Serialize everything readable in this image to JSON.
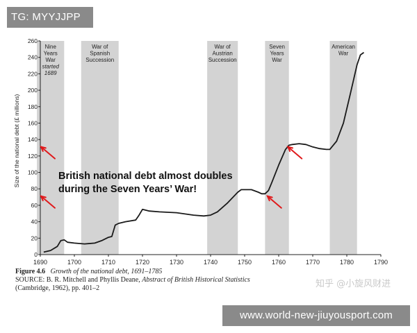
{
  "top_tag": "TG: MYYJJPP",
  "bottom_tag": "www.world-new-jiuyousport.com",
  "watermark": "知乎 @小旋风财进",
  "colors": {
    "tag_bg": "#8a8a8a",
    "war_band": "#d3d3d3",
    "line": "#1a1a1a",
    "arrow": "#e0191b"
  },
  "caption": {
    "figure_number": "Figure 4.6",
    "figure_title": "Growth of the national debt, 1691–1785",
    "source_label": "SOURCE:",
    "source_authors": "B. R. Mitchell and Phyllis Deane,",
    "source_title": "Abstract of British Historical Statistics",
    "source_details": "(Cambridge, 1962), pp. 401–2"
  },
  "chart_data": {
    "type": "line",
    "ylabel": "Size of the national debt (£ millions)",
    "xlabel": "",
    "xlim": [
      1690,
      1790
    ],
    "ylim": [
      0,
      260
    ],
    "x_ticks": [
      1690,
      1700,
      1710,
      1720,
      1730,
      1740,
      1750,
      1760,
      1770,
      1780,
      1790
    ],
    "y_ticks": [
      0,
      20,
      40,
      60,
      80,
      100,
      120,
      140,
      160,
      180,
      200,
      220,
      240,
      260
    ],
    "grid": false,
    "wars": [
      {
        "start": 1689,
        "end": 1697,
        "label_lines": [
          "Nine",
          "Years",
          "War"
        ],
        "note_lines": [
          "started",
          "1689"
        ]
      },
      {
        "start": 1702,
        "end": 1713,
        "label_lines": [
          "War of",
          "Spanish",
          "Succession"
        ]
      },
      {
        "start": 1739,
        "end": 1748,
        "label_lines": [
          "War of",
          "Austrian",
          "Succession"
        ]
      },
      {
        "start": 1756,
        "end": 1763,
        "label_lines": [
          "Seven",
          "Years",
          "War"
        ]
      },
      {
        "start": 1775,
        "end": 1783,
        "label_lines": [
          "American",
          "War"
        ]
      }
    ],
    "series": [
      {
        "x": [
          1691,
          1693,
          1695,
          1696,
          1697,
          1698,
          1700,
          1703,
          1706,
          1708,
          1710,
          1711,
          1712,
          1713,
          1715,
          1718,
          1719,
          1720,
          1722,
          1725,
          1730,
          1735,
          1738,
          1740,
          1742,
          1745,
          1748,
          1749,
          1752,
          1754,
          1755,
          1756,
          1757,
          1758,
          1760,
          1762,
          1763,
          1764,
          1766,
          1768,
          1770,
          1772,
          1774,
          1775,
          1777,
          1779,
          1781,
          1783,
          1784,
          1785
        ],
        "y": [
          3,
          5,
          10,
          17,
          18,
          15,
          14,
          13,
          14,
          17,
          21,
          22,
          36,
          38,
          40,
          42,
          48,
          55,
          53,
          52,
          51,
          48,
          47,
          48,
          52,
          63,
          76,
          79,
          79,
          76,
          74,
          74,
          78,
          88,
          109,
          128,
          133,
          134,
          135,
          134,
          131,
          129,
          128,
          128,
          138,
          160,
          195,
          231,
          243,
          246
        ]
      }
    ],
    "annotations": [
      {
        "text_lines": [
          "British national debt almost doubles",
          "during the Seven Years’ War!"
        ]
      }
    ],
    "arrows": [
      {
        "target_x": 1690,
        "target_y": 132
      },
      {
        "target_x": 1690,
        "target_y": 72
      },
      {
        "target_x": 1756.5,
        "target_y": 72
      },
      {
        "target_x": 1762.5,
        "target_y": 132
      }
    ]
  }
}
